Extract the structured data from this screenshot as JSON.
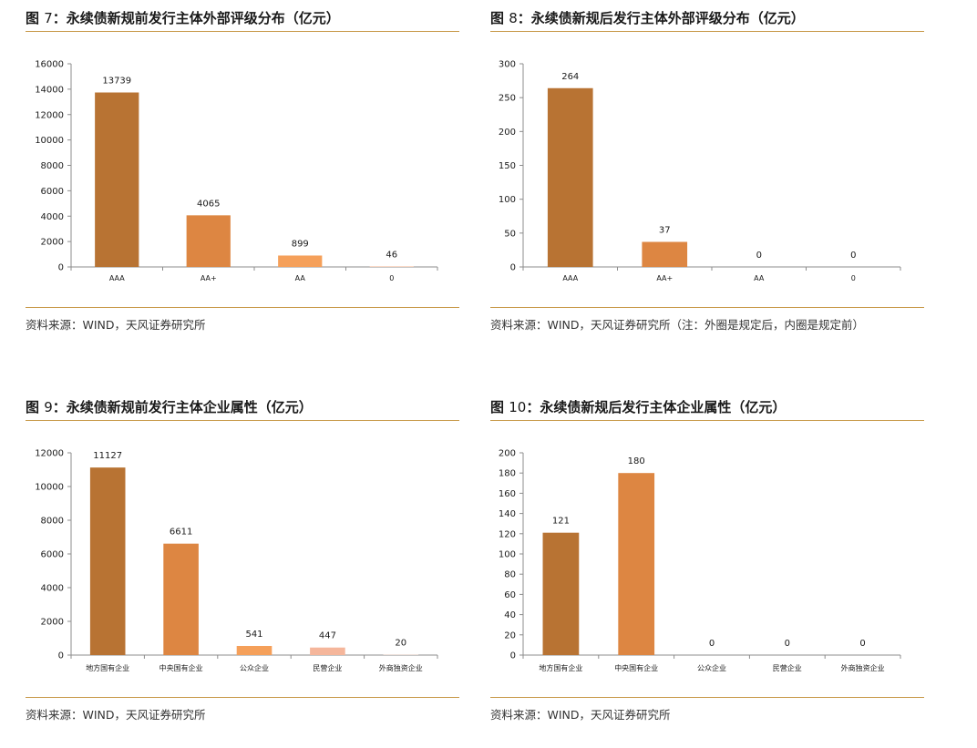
{
  "charts": [
    {
      "id": "fig7",
      "title_prefix": "图 ",
      "title_num": "7",
      "title_text": "：永续债新规前发行主体外部评级分布（亿元）",
      "source": "资料来源：WIND，天风证券研究所",
      "chart_data": {
        "type": "bar",
        "categories": [
          "AAA",
          "AA+",
          "AA",
          "0"
        ],
        "values": [
          13739,
          4065,
          899,
          46
        ],
        "data_labels": [
          "13739",
          "4065",
          "899",
          "46"
        ],
        "ylim": [
          0,
          16000
        ],
        "yticks": [
          0,
          2000,
          4000,
          6000,
          8000,
          10000,
          12000,
          14000,
          16000
        ],
        "bar_colors": [
          "#b87333",
          "#dd8642",
          "#f5a05a",
          "#f5c2a6"
        ],
        "grid": false,
        "legend": "none"
      }
    },
    {
      "id": "fig8",
      "title_prefix": "图 ",
      "title_num": "8",
      "title_text": "：永续债新规后发行主体外部评级分布（亿元）",
      "source": "资料来源：WIND，天风证券研究所（注：外圈是规定后，内圈是规定前）",
      "chart_data": {
        "type": "bar",
        "categories": [
          "AAA",
          "AA+",
          "AA",
          "0"
        ],
        "values": [
          264,
          37,
          0,
          0
        ],
        "data_labels": [
          "264",
          "37",
          "0",
          "0"
        ],
        "ylim": [
          0,
          300
        ],
        "yticks": [
          0,
          50,
          100,
          150,
          200,
          250,
          300
        ],
        "bar_colors": [
          "#b87333",
          "#dd8642",
          "#f5a05a",
          "#f5c2a6"
        ],
        "grid": false,
        "legend": "none"
      }
    },
    {
      "id": "fig9",
      "title_prefix": "图 ",
      "title_num": "9",
      "title_text": "：永续债新规前发行主体企业属性（亿元）",
      "source": "资料来源：WIND，天风证券研究所",
      "chart_data": {
        "type": "bar",
        "categories": [
          "地方国有企业",
          "中央国有企业",
          "公众企业",
          "民营企业",
          "外商独资企业"
        ],
        "values": [
          11127,
          6611,
          541,
          447,
          20
        ],
        "data_labels": [
          "11127",
          "6611",
          "541",
          "447",
          "20"
        ],
        "ylim": [
          0,
          12000
        ],
        "yticks": [
          0,
          2000,
          4000,
          6000,
          8000,
          10000,
          12000
        ],
        "bar_colors": [
          "#b87333",
          "#dd8642",
          "#f5a05a",
          "#f5b69b",
          "#f8d7c8"
        ],
        "grid": false,
        "legend": "none"
      }
    },
    {
      "id": "fig10",
      "title_prefix": "图 ",
      "title_num": "10",
      "title_text": "：永续债新规后发行主体企业属性（亿元）",
      "source": "资料来源：WIND，天风证券研究所",
      "chart_data": {
        "type": "bar",
        "categories": [
          "地方国有企业",
          "中央国有企业",
          "公众企业",
          "民营企业",
          "外商独资企业"
        ],
        "values": [
          121,
          180,
          0,
          0,
          0
        ],
        "data_labels": [
          "121",
          "180",
          "0",
          "0",
          "0"
        ],
        "ylim": [
          0,
          200
        ],
        "yticks": [
          0,
          20,
          40,
          60,
          80,
          100,
          120,
          140,
          160,
          180,
          200
        ],
        "bar_colors": [
          "#b87333",
          "#dd8642",
          "#f5a05a",
          "#f5b69b",
          "#f8d7c8"
        ],
        "grid": false,
        "legend": "none"
      }
    }
  ]
}
